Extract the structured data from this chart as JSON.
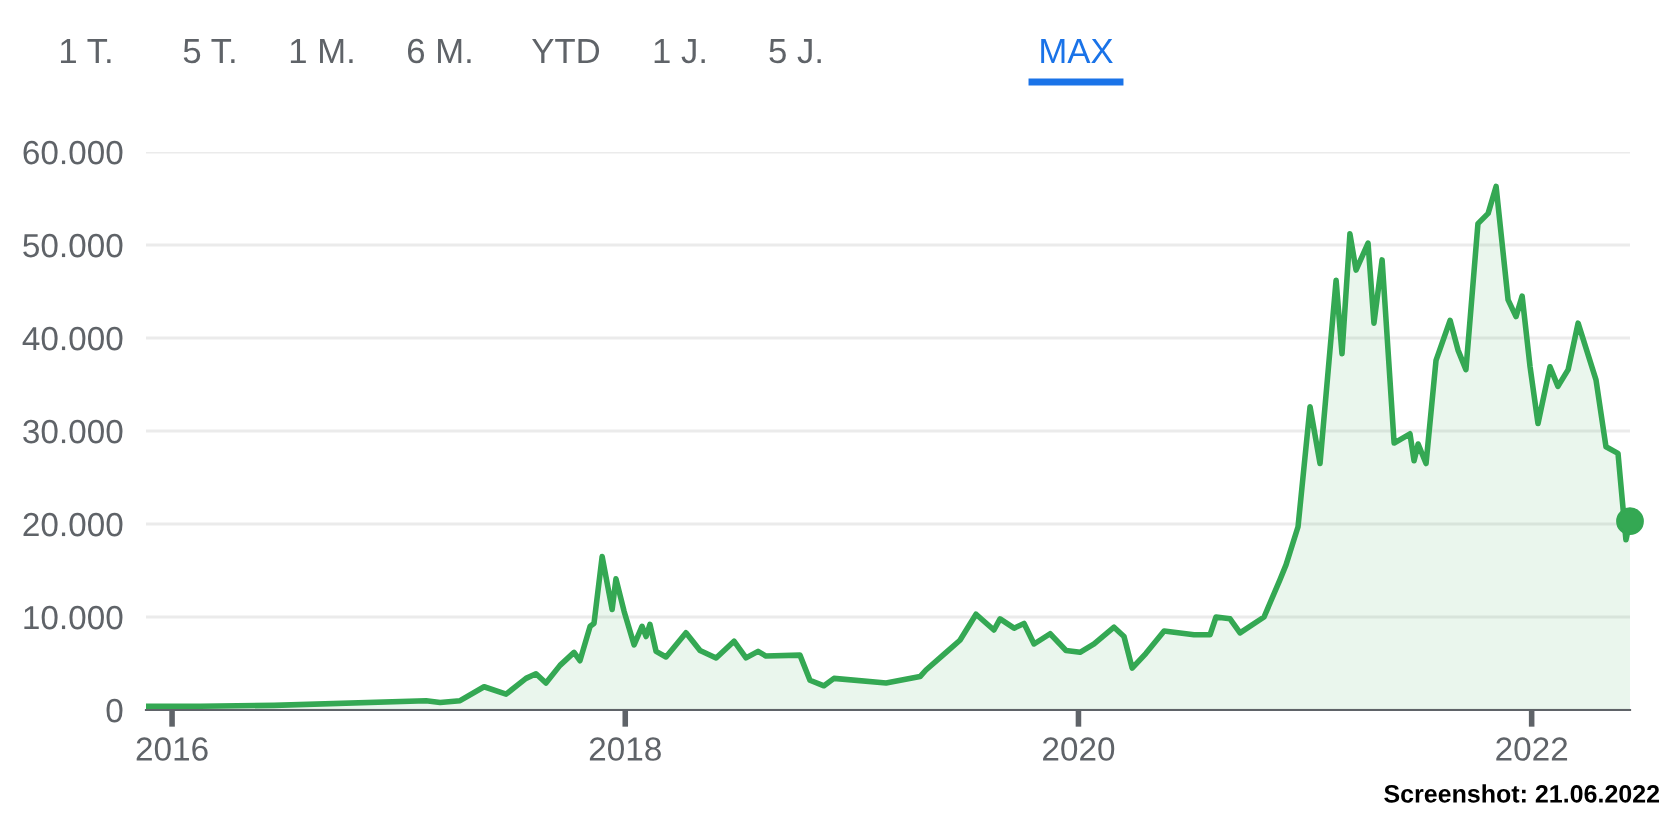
{
  "chart_data": {
    "type": "area",
    "color": "#34a853",
    "x": [
      2015.885,
      2016.124,
      2016.45,
      2017.121,
      2017.183,
      2017.271,
      2017.377,
      2017.474,
      2017.562,
      2017.606,
      2017.65,
      2017.712,
      2017.774,
      2017.8,
      2017.845,
      2017.862,
      2017.898,
      2017.942,
      2017.959,
      2017.995,
      2018.039,
      2018.074,
      2018.092,
      2018.109,
      2018.136,
      2018.18,
      2018.268,
      2018.33,
      2018.401,
      2018.48,
      2018.533,
      2018.586,
      2018.621,
      2018.771,
      2018.815,
      2018.877,
      2018.921,
      2019.151,
      2019.301,
      2019.327,
      2019.416,
      2019.477,
      2019.548,
      2019.627,
      2019.654,
      2019.716,
      2019.76,
      2019.804,
      2019.875,
      2019.945,
      2020.007,
      2020.069,
      2020.157,
      2020.201,
      2020.237,
      2020.298,
      2020.378,
      2020.51,
      2020.581,
      2020.607,
      2020.669,
      2020.713,
      2020.819,
      2020.889,
      2020.916,
      2020.969,
      2021.022,
      2021.066,
      2021.137,
      2021.163,
      2021.198,
      2021.225,
      2021.278,
      2021.304,
      2021.34,
      2021.393,
      2021.463,
      2021.481,
      2021.499,
      2021.534,
      2021.578,
      2021.64,
      2021.675,
      2021.71,
      2021.763,
      2021.808,
      2021.843,
      2021.896,
      2021.931,
      2021.958,
      2021.993,
      2022.028,
      2022.081,
      2022.116,
      2022.161,
      2022.205,
      2022.284,
      2022.328,
      2022.381,
      2022.416,
      2022.434
    ],
    "values": [
      400,
      400,
      500,
      1000,
      800,
      1000,
      2500,
      1700,
      3400,
      3900,
      2900,
      4800,
      6200,
      5300,
      9000,
      9300,
      16500,
      10800,
      14100,
      10600,
      7000,
      9000,
      7900,
      9200,
      6300,
      5700,
      8300,
      6400,
      5600,
      7400,
      5600,
      6300,
      5800,
      5900,
      3200,
      2600,
      3400,
      2900,
      3600,
      4300,
      6200,
      7500,
      10300,
      8600,
      9800,
      8800,
      9300,
      7100,
      8200,
      6400,
      6200,
      7100,
      8900,
      7900,
      4500,
      6100,
      8500,
      8100,
      8100,
      10000,
      9800,
      8300,
      10000,
      14000,
      15600,
      19700,
      32600,
      26500,
      46200,
      38300,
      51200,
      47300,
      50200,
      41600,
      48400,
      28700,
      29700,
      26800,
      28600,
      26500,
      37600,
      41900,
      38700,
      36600,
      52300,
      53400,
      56300,
      44100,
      42300,
      44500,
      36900,
      30800,
      36900,
      34800,
      36600,
      41600,
      35500,
      28300,
      27600,
      18300,
      20300
    ],
    "xlim": [
      2015.885,
      2022.434
    ],
    "xticks": [
      2016,
      2018,
      2020,
      2022
    ],
    "ylim": [
      0,
      60000
    ],
    "yticks": [
      {
        "value": 0,
        "label": "0"
      },
      {
        "value": 10000,
        "label": "10.000"
      },
      {
        "value": 20000,
        "label": "20.000"
      },
      {
        "value": 30000,
        "label": "30.000"
      },
      {
        "value": 40000,
        "label": "40.000"
      },
      {
        "value": 50000,
        "label": "50.000"
      },
      {
        "value": 60000,
        "label": "60.000"
      }
    ],
    "grid": "y",
    "annotations": [
      "1 T.",
      "5 T.",
      "1 M.",
      "6 M.",
      "YTD",
      "1 J.",
      "5 J.",
      "MAX",
      "Screenshot: 21.06.2022"
    ]
  }
}
